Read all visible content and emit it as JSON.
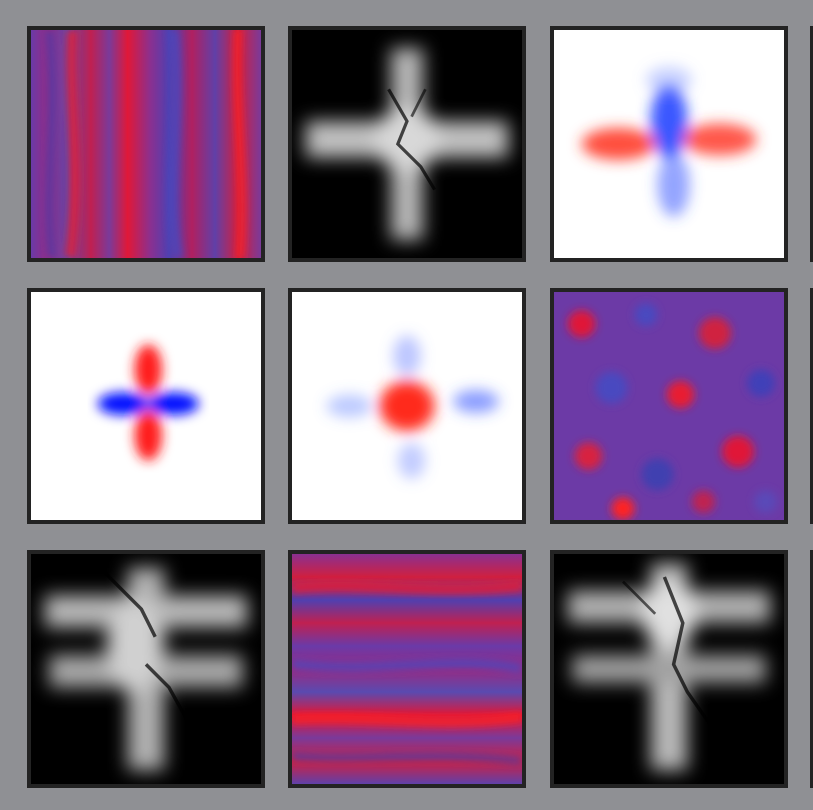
{
  "grid": {
    "rows": 3,
    "columns": 3,
    "tiles": [
      {
        "row": 1,
        "col": 1,
        "pattern": "noise-vertical-streaks",
        "colormap": "red-blue-purple"
      },
      {
        "row": 1,
        "col": 2,
        "pattern": "bright-cross",
        "colormap": "grayscale-on-black"
      },
      {
        "row": 1,
        "col": 3,
        "pattern": "diverging-cross-noisy",
        "colormap": "red-white-blue"
      },
      {
        "row": 2,
        "col": 1,
        "pattern": "quadrupole-lobes",
        "colormap": "red-white-blue"
      },
      {
        "row": 2,
        "col": 2,
        "pattern": "diverging-blob-noisy",
        "colormap": "red-white-blue"
      },
      {
        "row": 2,
        "col": 3,
        "pattern": "noise-isotropic",
        "colormap": "red-blue-purple"
      },
      {
        "row": 3,
        "col": 1,
        "pattern": "bright-cross",
        "colormap": "grayscale-on-black"
      },
      {
        "row": 3,
        "col": 2,
        "pattern": "noise-horizontal-streaks",
        "colormap": "red-blue-purple"
      },
      {
        "row": 3,
        "col": 3,
        "pattern": "bright-cross",
        "colormap": "grayscale-on-black"
      }
    ]
  },
  "colors": {
    "background": "#8f9094",
    "border": "#232323",
    "red": "#ff2020",
    "blue": "#1030ff",
    "purple": "#7a3a9a"
  }
}
